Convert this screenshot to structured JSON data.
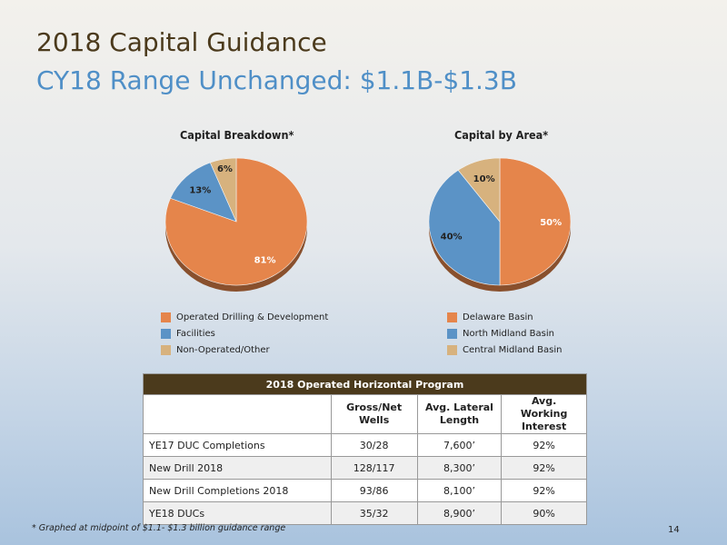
{
  "slide": {
    "title": "2018 Capital Guidance",
    "subtitle": "CY18 Range Unchanged: $1.1B-$1.3B",
    "footnote": "* Graphed at midpoint of $1.1- $1.3 billion guidance range",
    "page_number": "14"
  },
  "chart_data": [
    {
      "type": "pie",
      "title": "Capital Breakdown*",
      "slices": [
        {
          "label": "Operated Drilling & Development",
          "value": 81,
          "display": "81%",
          "color": "#e5854b"
        },
        {
          "label": "Facilities",
          "value": 13,
          "display": "13%",
          "color": "#5b93c6"
        },
        {
          "label": "Non-Operated/Other",
          "value": 6,
          "display": "6%",
          "color": "#d7b27e"
        }
      ],
      "legend_position": "bottom-left"
    },
    {
      "type": "pie",
      "title": "Capital by Area*",
      "slices": [
        {
          "label": "Delaware Basin",
          "value": 50,
          "display": "50%",
          "color": "#e5854b"
        },
        {
          "label": "North Midland Basin",
          "value": 40,
          "display": "40%",
          "color": "#5b93c6"
        },
        {
          "label": "Central Midland Basin",
          "value": 10,
          "display": "10%",
          "color": "#d7b27e"
        }
      ],
      "legend_position": "bottom-left"
    }
  ],
  "table": {
    "title": "2018 Operated Horizontal Program",
    "headers": [
      "",
      "Gross/Net Wells",
      "Avg. Lateral Length",
      "Avg. Working Interest"
    ],
    "rows": [
      [
        "YE17 DUC Completions",
        "30/28",
        "7,600’",
        "92%"
      ],
      [
        "New Drill 2018",
        "128/117",
        "8,300’",
        "92%"
      ],
      [
        "New Drill Completions 2018",
        "93/86",
        "8,100’",
        "92%"
      ],
      [
        "YE18 DUCs",
        "35/32",
        "8,900’",
        "90%"
      ]
    ]
  }
}
